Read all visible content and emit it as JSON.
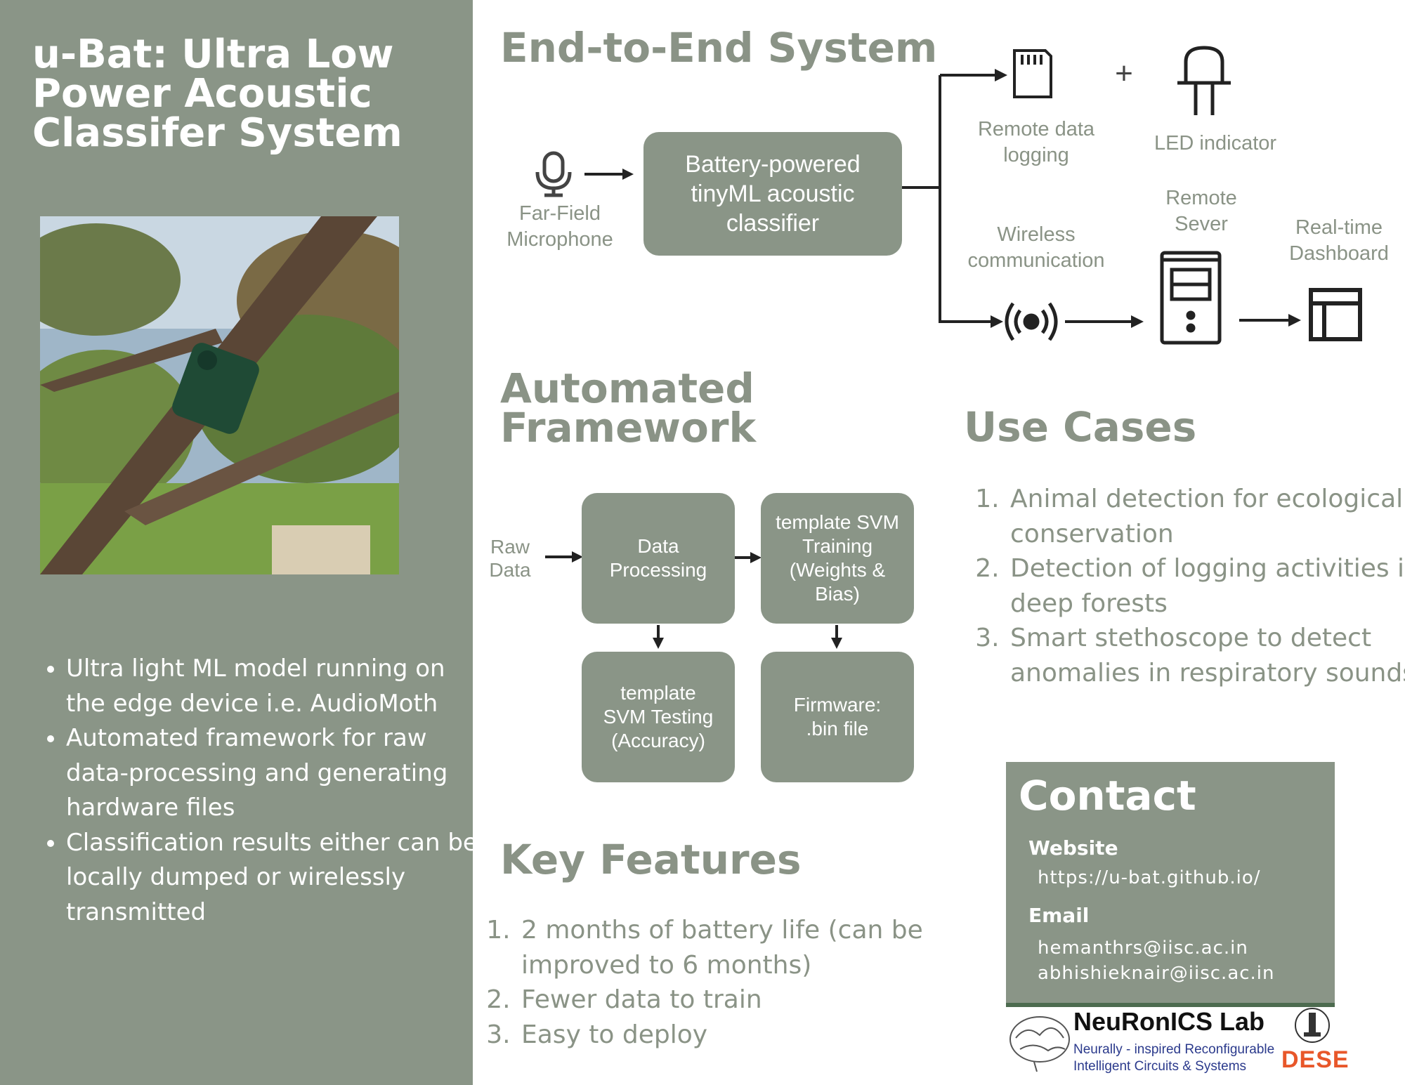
{
  "title": "u-Bat: Ultra Low Power Acoustic Classifer System",
  "left_bullets": [
    "Ultra light ML model running on the edge device i.e. AudioMoth",
    "Automated framework for raw data-processing and generating hardware files",
    "Classification results either can be locally dumped or wirelessly transmitted"
  ],
  "end_to_end": {
    "heading": "End-to-End System",
    "mic_label": "Far-Field Microphone",
    "classifier_box": "Battery-powered tinyML acoustic classifier",
    "remote_logging": "Remote data logging",
    "plus": "+",
    "led": "LED indicator",
    "wireless": "Wireless communication",
    "server": "Remote Sever",
    "dashboard": "Real-time Dashboard"
  },
  "framework": {
    "heading": "Automated Framework",
    "raw_data": "Raw Data",
    "data_processing": "Data Processing",
    "svm_training": "template SVM Training (Weights & Bias)",
    "svm_testing": "template SVM Testing (Accuracy)",
    "firmware": "Firmware: .bin file"
  },
  "use_cases": {
    "heading": "Use Cases",
    "items": [
      "Animal detection for ecological conservation",
      "Detection of logging activities in deep forests",
      "Smart stethoscope to detect anomalies in respiratory sounds"
    ]
  },
  "key_features": {
    "heading": "Key Features",
    "items": [
      "2 months of battery life (can be improved to 6 months)",
      "Fewer data to train",
      "Easy to deploy"
    ]
  },
  "contact": {
    "heading": "Contact",
    "website_label": "Website",
    "website": "https://u-bat.github.io/",
    "email_label": "Email",
    "email_1": "hemanthrs@iisc.ac.in",
    "email_2": "abhishieknair@iisc.ac.in"
  },
  "lab": {
    "name": "NeuRonICS Lab",
    "tagline_1": "Neurally - inspired Reconfigurable",
    "tagline_2": "Intelligent Circuits & Systems",
    "dept_logo": "DESE"
  },
  "colors": {
    "panel": "#8a9587",
    "text_grey": "#8a9386",
    "lab_orange": "#e8572a",
    "lab_blue": "#2b3a8c"
  }
}
